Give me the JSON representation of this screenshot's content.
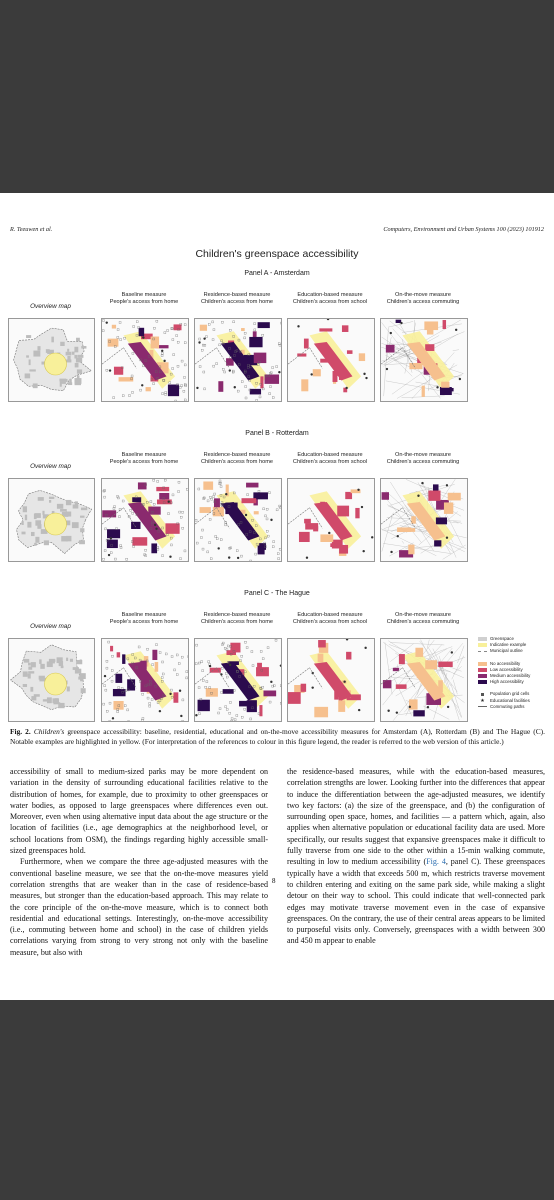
{
  "header": {
    "author": "R. Teeuwen et al.",
    "journal": "Computers, Environment and Urban Systems 100 (2023) 101912"
  },
  "figure": {
    "title": "Children's greenspace accessibility",
    "overview_label": "Overview map",
    "column_headers": [
      {
        "measure": "Baseline measure",
        "description": "People's access from home"
      },
      {
        "measure": "Residence-based measure",
        "description": "Children's access from home"
      },
      {
        "measure": "Education-based measure",
        "description": "Children's access from school"
      },
      {
        "measure": "On-the-move measure",
        "description": "Children's access commuting"
      }
    ],
    "panels": [
      "Panel A - Amsterdam",
      "Panel B - Rotterdam",
      "Panel C - The Hague"
    ],
    "legend": [
      [
        "Greenspace",
        "Indicative example",
        "Municipal outline"
      ],
      [
        "No accessibility",
        "Low accessibility",
        "Medium accessibility",
        "High accessibility"
      ],
      [
        "Population grid cells",
        "Educational facilities",
        "Commuting paths"
      ]
    ]
  },
  "caption": {
    "label": "Fig. 2.",
    "emphasis": "Children's",
    "text": "greenspace accessibility: baseline, residential, educational and on-the-move accessibility measures for Amsterdam (A), Rotterdam (B) and The Hague (C). Notable examples are highlighted in yellow. (For interpretation of the references to colour in this figure legend, the reader is referred to the web version of this article.)"
  },
  "body": {
    "left": [
      "accessibility of small to medium-sized parks may be more dependent on variation in the density of surrounding educational facilities relative to the distribution of homes, for example, due to proximity to other greenspaces or water bodies, as opposed to large greenspaces where differences even out. Moreover, even when using alternative input data about the age structure or the location of facilities (i.e., age demographics at the neighborhood level, or school locations from OSM), the findings regarding highly accessible small-sized greenspaces hold.",
      "Furthermore, when we compare the three age-adjusted measures with the conventional baseline measure, we see that the on-the-move measures yield correlation strengths that are weaker than in the case of residence-based measures, but stronger than the education-based approach. This may relate to the core principle of the on-the-move measure, which is to connect both residential and educational settings. Interestingly, on-the-move accessibility (i.e., commuting between home and school) in the case of children yields correlations varying from strong to very strong not only with the baseline measure, but also with"
    ],
    "right": {
      "before": "the residence-based measures, while with the education-based measures, correlation strengths are lower. Looking further into the differences that appear to induce the differentiation between the age-adjusted measures, we identify two key factors: (a) the size of the greenspace, and (b) the configuration of surrounding open space, homes, and facilities — a pattern which, again, also applies when alternative population or educational facility data are used. More specifically, our results suggest that expansive greenspaces make it difficult to fully traverse from one side to the other within a 15-min walking commute, resulting in low to medium accessibility (",
      "link": "Fig. 4",
      "after": ", panel C). These greenspaces typically have a width that exceeds 500 m, which restricts traverse movement to children entering and exiting on the same park side, while making a slight detour on their way to school. This could indicate that well-connected park edges may motivate traverse movement even in the case of expansive greenspaces. On the contrary, the use of their central areas appears to be limited to purposeful visits only. Conversely, greenspaces with a width between 300 and 450 m appear to enable"
    }
  },
  "page_number": "8"
}
